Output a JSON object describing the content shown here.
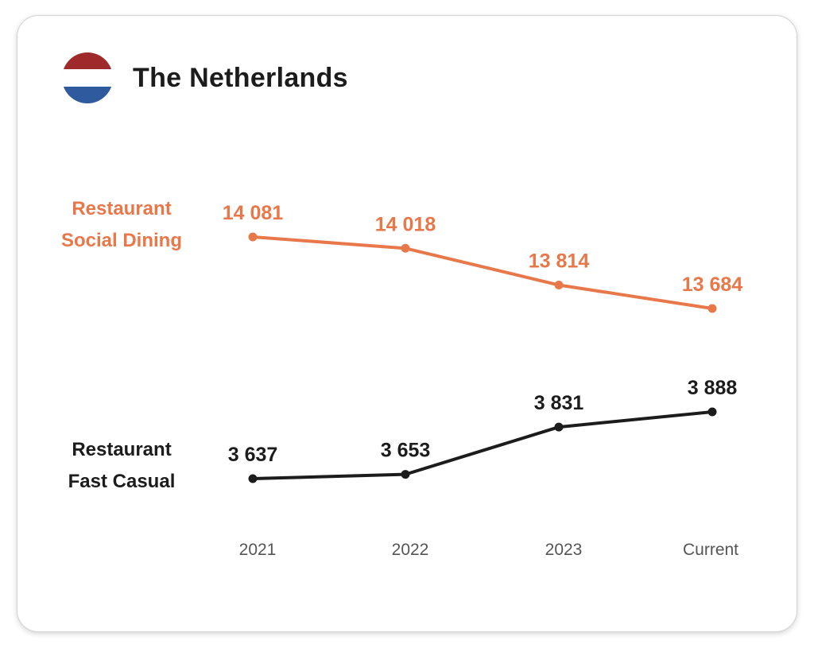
{
  "header": {
    "title": "The Netherlands",
    "flag_colors": [
      "#9e2a2b",
      "#ffffff",
      "#2f5a9e"
    ]
  },
  "chart_data": {
    "type": "line",
    "categories": [
      "2021",
      "2022",
      "2023",
      "Current"
    ],
    "series": [
      {
        "name": "Restaurant Social Dining",
        "name_lines": [
          "Restaurant",
          "Social Dining"
        ],
        "values": [
          14081,
          14018,
          13814,
          13684
        ],
        "value_labels": [
          "14 081",
          "14 018",
          "13 814",
          "13 684"
        ],
        "color": "#e8784a"
      },
      {
        "name": "Restaurant Fast Casual",
        "name_lines": [
          "Restaurant",
          "Fast Casual"
        ],
        "values": [
          3637,
          3653,
          3831,
          3888
        ],
        "value_labels": [
          "3 637",
          "3 653",
          "3 831",
          "3 888"
        ],
        "color": "#1c1c1c"
      }
    ],
    "title": "The Netherlands",
    "xlabel": "",
    "ylabel": "",
    "grid": false,
    "legend": "left"
  }
}
